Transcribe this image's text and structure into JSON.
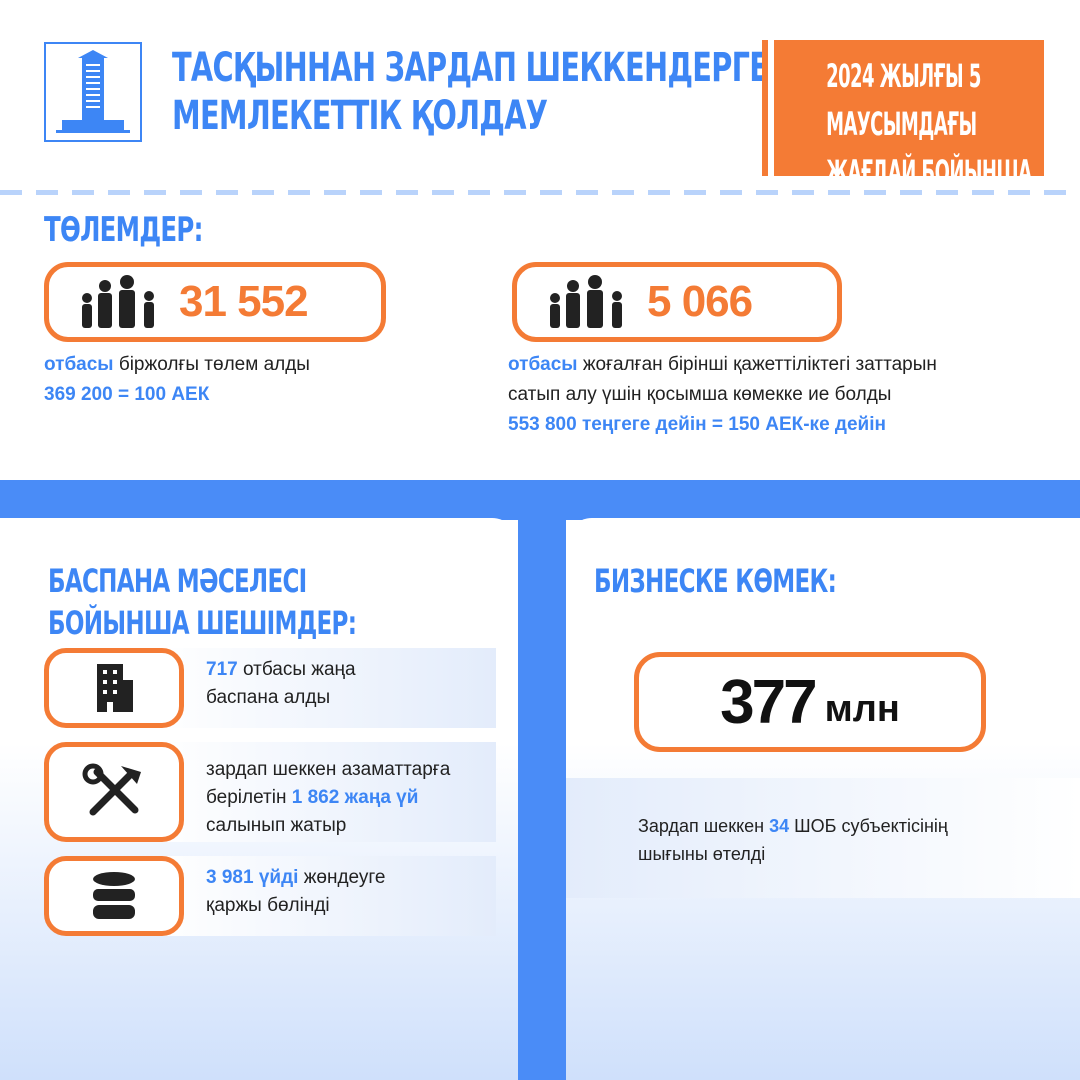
{
  "header": {
    "title_line1": "ТАСҚЫННАН ЗАРДАП ШЕККЕНДЕРГЕ",
    "title_line2": "МЕМЛЕКЕТТІК ҚОЛДАУ",
    "date_line1": "2024 ЖЫЛҒЫ 5",
    "date_line2": "МАУСЫМДАҒЫ",
    "date_line3": "ЖАҒДАЙ БОЙЫНША",
    "logo_icon": "government-building-icon"
  },
  "payments": {
    "title": "ТӨЛЕМДЕР:",
    "card1": {
      "value": "31 552",
      "icon": "family-icon",
      "desc_highlight": "отбасы",
      "desc_text": " біржолғы төлем алды",
      "desc_line2": "369 200  = 100 АЕК"
    },
    "card2": {
      "value": "5 066",
      "icon": "family-icon",
      "desc_highlight": "отбасы",
      "desc_text": " жоғалған бірінші қажеттіліктегі заттарын",
      "desc_line2": "сатып алу үшін қосымша көмекке ие болды",
      "desc_line3": "553 800 теңгеге дейін = 150 АЕК-ке дейін"
    }
  },
  "housing": {
    "title_line1": "БАСПАНА МӘСЕЛЕСІ",
    "title_line2": "БОЙЫНША ШЕШІМДЕР:",
    "items": [
      {
        "icon": "building-icon",
        "highlight": "717",
        "text": " отбасы жаңа",
        "line2": "баспана алды"
      },
      {
        "icon": "tools-icon",
        "line1": "зардап шеккен азаматтарға",
        "pre": "берілетін ",
        "highlight": "1 862 жаңа үй",
        "line3": "салынып жатыр"
      },
      {
        "icon": "database-icon",
        "highlight": "3 981 үйді",
        "text": " жөндеуге",
        "line2": "қаржы бөлінді"
      }
    ]
  },
  "business": {
    "title": "БИЗНЕСКЕ КӨМЕК:",
    "value": "377",
    "unit": "млн",
    "desc_pre": "Зардап шеккен ",
    "desc_highlight": "34",
    "desc_post": " ШОБ субъектісінің",
    "desc_line2": "шығыны өтелді"
  },
  "colors": {
    "blue": "#3d86f5",
    "orange": "#f47b35"
  }
}
